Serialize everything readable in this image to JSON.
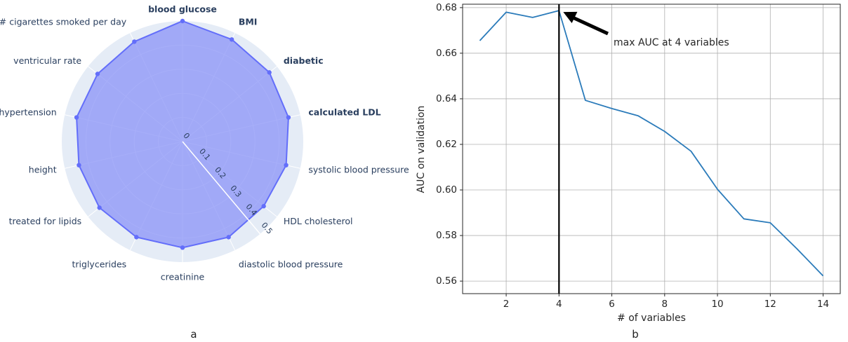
{
  "chart_data": [
    {
      "type": "radar",
      "panel_label": "a",
      "radial_range": [
        0,
        0.5
      ],
      "radial_ticks": [
        "0",
        "0.1",
        "0.2",
        "0.3",
        "0.4",
        "0.5"
      ],
      "radial_tick_values": [
        0,
        0.1,
        0.2,
        0.3,
        0.4,
        0.5
      ],
      "colors": {
        "fill": "#8a93f7",
        "line": "#636efa",
        "background": "#e5ecf6",
        "grid": "#ffffff",
        "label": "#2a3f5f"
      },
      "axes": [
        {
          "label": "blood glucose",
          "value": 0.5,
          "bold": true
        },
        {
          "label": "BMI",
          "value": 0.47,
          "bold": true
        },
        {
          "label": "diabetic",
          "value": 0.46,
          "bold": true
        },
        {
          "label": "calculated LDL",
          "value": 0.45,
          "bold": true
        },
        {
          "label": "systolic blood pressure",
          "value": 0.44,
          "bold": false
        },
        {
          "label": "HDL cholesterol",
          "value": 0.43,
          "bold": false
        },
        {
          "label": "diastolic blood pressure",
          "value": 0.44,
          "bold": false
        },
        {
          "label": "creatinine",
          "value": 0.44,
          "bold": false
        },
        {
          "label": "triglycerides",
          "value": 0.44,
          "bold": false
        },
        {
          "label": "treated for lipids",
          "value": 0.44,
          "bold": false
        },
        {
          "label": "height",
          "value": 0.44,
          "bold": false
        },
        {
          "label": "hypertension",
          "value": 0.45,
          "bold": false
        },
        {
          "label": "ventricular rate",
          "value": 0.45,
          "bold": false
        },
        {
          "label": "# cigarettes smoked per day",
          "value": 0.46,
          "bold": false
        }
      ]
    },
    {
      "type": "line",
      "panel_label": "b",
      "xlabel": "# of variables",
      "ylabel": "AUC on validation",
      "xlim": [
        0.35,
        14.65
      ],
      "ylim": [
        0.5545,
        0.6815
      ],
      "xticks": [
        2,
        4,
        6,
        8,
        10,
        12,
        14
      ],
      "xtick_labels": [
        "2",
        "4",
        "6",
        "8",
        "10",
        "12",
        "14"
      ],
      "yticks": [
        0.56,
        0.58,
        0.6,
        0.62,
        0.64,
        0.66,
        0.68
      ],
      "ytick_labels": [
        "0.56",
        "0.58",
        "0.60",
        "0.62",
        "0.64",
        "0.66",
        "0.68"
      ],
      "grid": true,
      "x": [
        1,
        2,
        3,
        4,
        5,
        6,
        7,
        8,
        9,
        10,
        11,
        12,
        13,
        14
      ],
      "y": [
        0.6655,
        0.678,
        0.6757,
        0.6787,
        0.6393,
        0.6357,
        0.6325,
        0.6257,
        0.617,
        0.6003,
        0.5873,
        0.5856,
        0.5743,
        0.5623
      ],
      "line_color": "#2b7bba",
      "vline_x": 4,
      "annotation": {
        "text": "max AUC at 4 variables",
        "arrow_to_x": 4,
        "arrow_to_y": 0.6787
      }
    }
  ]
}
